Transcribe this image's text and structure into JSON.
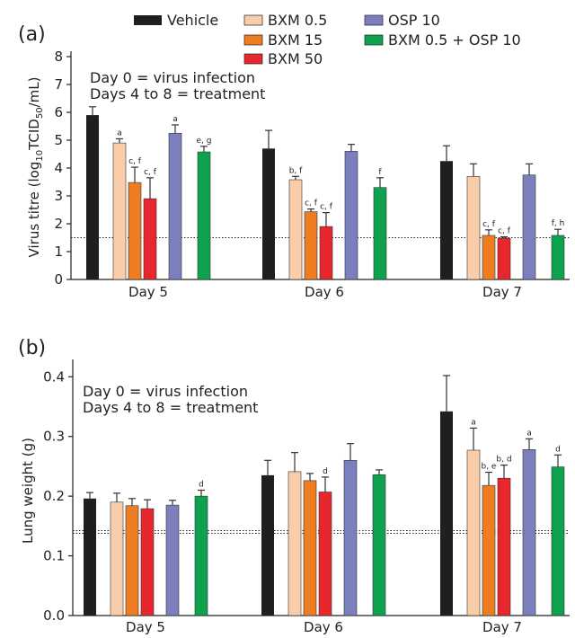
{
  "legend": {
    "items": [
      {
        "label": "Vehicle",
        "color": "#1f1f1f"
      },
      {
        "label": "BXM 0.5",
        "color": "#f9cda9"
      },
      {
        "label": "BXM 15",
        "color": "#ee7d22"
      },
      {
        "label": "BXM 50",
        "color": "#e8262d"
      },
      {
        "label": "OSP 10",
        "color": "#7c7fbd"
      },
      {
        "label": "BXM 0.5 + OSP 10",
        "color": "#0ea24e"
      }
    ]
  },
  "chart_data": [
    {
      "panel": "(a)",
      "type": "bar",
      "ylabel_main": "Virus titre (log",
      "ylabel_sub1": "10",
      "ylabel_mid": "TCID",
      "ylabel_sub2": "50",
      "ylabel_end": "/mL)",
      "ylim": [
        0,
        8
      ],
      "yticks": [
        "0",
        "1",
        "2",
        "3",
        "4",
        "5",
        "6",
        "7",
        "8"
      ],
      "categories": [
        "Day 5",
        "Day 6",
        "Day 7"
      ],
      "annotation_line1": "Day 0 = virus infection",
      "annotation_line2": "Days 4 to 8 = treatment",
      "reference_line": 1.5,
      "series": [
        {
          "name": "Vehicle",
          "values": [
            5.9,
            4.7,
            4.25
          ],
          "errors": [
            0.3,
            0.65,
            0.55
          ],
          "marks": [
            "",
            "",
            ""
          ]
        },
        {
          "name": "BXM 0.5",
          "values": [
            4.9,
            3.58,
            3.7
          ],
          "errors": [
            0.15,
            0.12,
            0.45
          ],
          "marks": [
            "a",
            "b, f",
            ""
          ]
        },
        {
          "name": "BXM 15",
          "values": [
            3.48,
            2.43,
            1.58
          ],
          "errors": [
            0.55,
            0.1,
            0.2
          ],
          "marks": [
            "c, f",
            "c, f",
            "c, f"
          ]
        },
        {
          "name": "BXM 50",
          "values": [
            2.9,
            1.9,
            1.48
          ],
          "errors": [
            0.75,
            0.5,
            0.05
          ],
          "marks": [
            "c, f",
            "c, f",
            "c, f"
          ]
        },
        {
          "name": "OSP 10",
          "values": [
            5.25,
            4.6,
            3.75
          ],
          "errors": [
            0.3,
            0.25,
            0.4
          ],
          "marks": [
            "a",
            "",
            ""
          ]
        },
        {
          "name": "BXM 0.5 + OSP 10",
          "values": [
            4.58,
            3.3,
            1.58
          ],
          "errors": [
            0.2,
            0.35,
            0.22
          ],
          "marks": [
            "e, g",
            "f",
            "f, h"
          ]
        }
      ]
    },
    {
      "panel": "(b)",
      "type": "bar",
      "ylabel": "Lung weight (g)",
      "ylim": [
        0,
        0.42
      ],
      "yticks": [
        "0.0",
        "0.1",
        "0.2",
        "0.3",
        "0.4"
      ],
      "categories": [
        "Day 5",
        "Day 6",
        "Day 7"
      ],
      "annotation_line1": "Day 0 = virus infection",
      "annotation_line2": "Days 4 to 8 = treatment",
      "reference_line": 0.14,
      "series": [
        {
          "name": "Vehicle",
          "values": [
            0.196,
            0.235,
            0.342
          ],
          "errors": [
            0.01,
            0.025,
            0.06
          ],
          "marks": [
            "",
            "",
            ""
          ]
        },
        {
          "name": "BXM 0.5",
          "values": [
            0.19,
            0.241,
            0.277
          ],
          "errors": [
            0.015,
            0.032,
            0.037
          ],
          "marks": [
            "",
            "",
            "a"
          ]
        },
        {
          "name": "BXM 15",
          "values": [
            0.184,
            0.226,
            0.218
          ],
          "errors": [
            0.012,
            0.012,
            0.022
          ],
          "marks": [
            "",
            "",
            "b, e"
          ]
        },
        {
          "name": "BXM 50",
          "values": [
            0.179,
            0.207,
            0.23
          ],
          "errors": [
            0.015,
            0.025,
            0.022
          ],
          "marks": [
            "",
            "d",
            "b, d"
          ]
        },
        {
          "name": "OSP 10",
          "values": [
            0.185,
            0.26,
            0.278
          ],
          "errors": [
            0.008,
            0.028,
            0.018
          ],
          "marks": [
            "",
            "",
            "a"
          ]
        },
        {
          "name": "BXM 0.5 + OSP 10",
          "values": [
            0.2,
            0.236,
            0.249
          ],
          "errors": [
            0.01,
            0.008,
            0.02
          ],
          "marks": [
            "d",
            "",
            "d"
          ]
        }
      ]
    }
  ]
}
